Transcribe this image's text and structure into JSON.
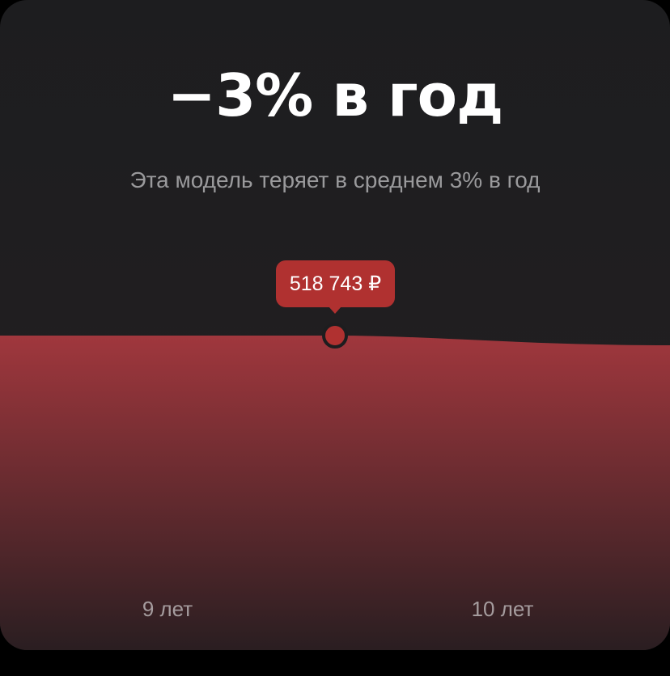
{
  "headline": "−3% в год",
  "subtitle": "Эта модель теряет в среднем 3% в год",
  "colors": {
    "background": "#1d1d1f",
    "area_top": "#a0373d",
    "area_bottom": "#2a1e21",
    "marker": "#b03130",
    "headline": "#ffffff",
    "subtitle": "#9a9a9c"
  },
  "chart_data": {
    "type": "area",
    "x": [
      "9 лет",
      "10 лет"
    ],
    "x_tick_labels": [
      "9 лет",
      "10 лет"
    ],
    "values": [
      518743,
      503181
    ],
    "highlight": {
      "x": "9 лет",
      "value": 518743,
      "label": "518 743 ₽"
    },
    "title": "",
    "xlabel": "",
    "ylabel": "",
    "grid": false,
    "legend": "none"
  }
}
